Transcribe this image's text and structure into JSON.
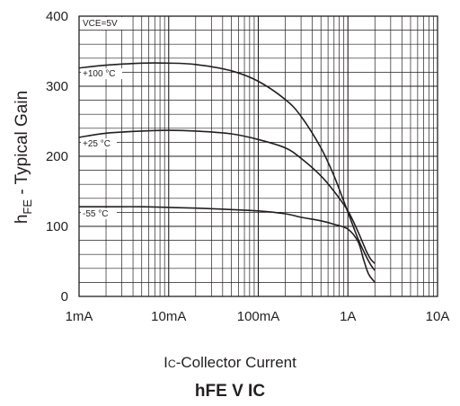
{
  "chart_data": {
    "type": "line",
    "title_main": "hFE",
    "title_mid": " V ",
    "title_sub": "C",
    "xlabel_pre": "I",
    "xlabel_sub": "C",
    "xlabel_post": "-Collector Current",
    "ylabel_pre": "h",
    "ylabel_sub": "FE",
    "ylabel_post": " - Typical Gain",
    "condition": "VCE=5V",
    "x_scale": "log",
    "x_range_A": [
      0.001,
      10
    ],
    "y_range": [
      0,
      400
    ],
    "x_ticks": [
      {
        "value": 0.001,
        "label": "1mA"
      },
      {
        "value": 0.01,
        "label": "10mA"
      },
      {
        "value": 0.1,
        "label": "100mA"
      },
      {
        "value": 1,
        "label": "1A"
      },
      {
        "value": 10,
        "label": "10A"
      }
    ],
    "y_ticks": [
      0,
      100,
      200,
      300,
      400
    ],
    "grid": true,
    "series": [
      {
        "name": "+100 °C",
        "x": [
          0.001,
          0.002,
          0.005,
          0.01,
          0.02,
          0.05,
          0.1,
          0.2,
          0.3,
          0.5,
          0.7,
          1.0,
          1.3,
          1.6,
          1.8,
          2.0
        ],
        "y": [
          326,
          330,
          333,
          333,
          331,
          322,
          307,
          281,
          257,
          212,
          172,
          120,
          82,
          57,
          45,
          37
        ]
      },
      {
        "name": "+25 °C",
        "x": [
          0.001,
          0.002,
          0.005,
          0.01,
          0.02,
          0.05,
          0.1,
          0.2,
          0.3,
          0.5,
          0.7,
          1.0,
          1.3,
          1.6,
          1.8,
          2.0
        ],
        "y": [
          227,
          233,
          236,
          237,
          236,
          232,
          224,
          212,
          197,
          172,
          150,
          122,
          92,
          65,
          53,
          47
        ]
      },
      {
        "name": "-55 °C",
        "x": [
          0.001,
          0.002,
          0.005,
          0.01,
          0.02,
          0.05,
          0.1,
          0.2,
          0.3,
          0.5,
          0.7,
          1.0,
          1.3,
          1.5,
          1.7,
          2.0
        ],
        "y": [
          128,
          128,
          128,
          127,
          126,
          124,
          122,
          118,
          113,
          108,
          103,
          96,
          78,
          52,
          32,
          20
        ]
      }
    ]
  }
}
